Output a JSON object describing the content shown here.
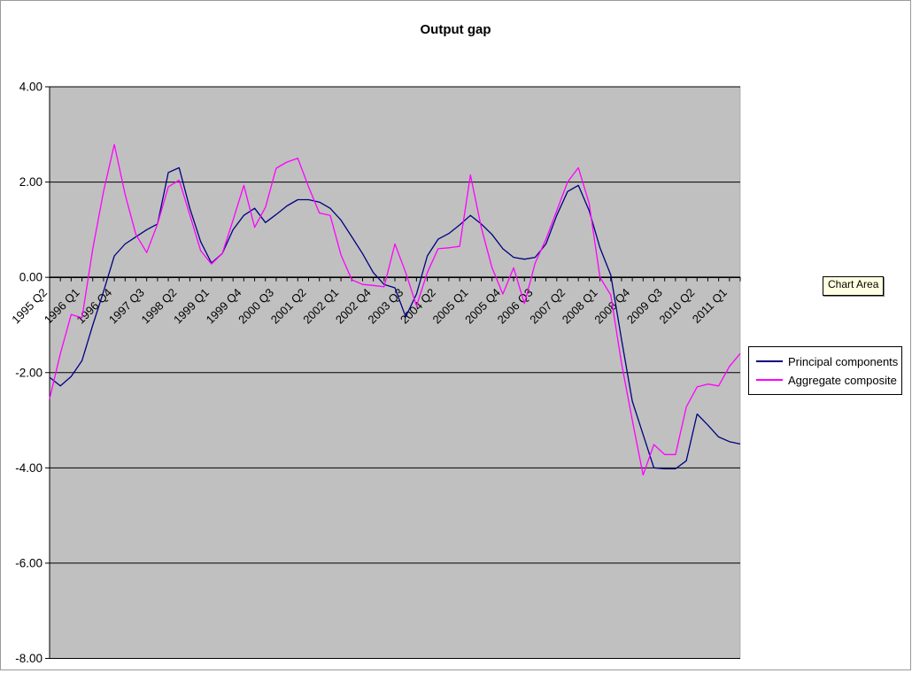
{
  "window": {
    "tooltip": "Chart Area"
  },
  "theme": {
    "chart_bg": "#FFFFFF",
    "plot_bg": "#C0C0C0",
    "grid_color": "#000000",
    "axis_color": "#000000",
    "text_color": "#000000",
    "tooltip_bg": "#FFFFE1",
    "legend_border": "#000000"
  },
  "chart_data": {
    "type": "line",
    "title": "Output gap",
    "xlabel": "",
    "ylabel": "",
    "ylim": [
      -8,
      4
    ],
    "y_tick_step": 2,
    "y_tick_labels": [
      "4.00",
      "2.00",
      "0.00",
      "-2.00",
      "-4.00",
      "-6.00",
      "-8.00"
    ],
    "grid": "horizontal",
    "legend_position": "right",
    "x": [
      "1995 Q2",
      "1995 Q3",
      "1995 Q4",
      "1996 Q1",
      "1996 Q2",
      "1996 Q3",
      "1996 Q4",
      "1997 Q1",
      "1997 Q2",
      "1997 Q3",
      "1997 Q4",
      "1998 Q1",
      "1998 Q2",
      "1998 Q3",
      "1998 Q4",
      "1999 Q1",
      "1999 Q2",
      "1999 Q3",
      "1999 Q4",
      "2000 Q1",
      "2000 Q2",
      "2000 Q3",
      "2000 Q4",
      "2001 Q1",
      "2001 Q2",
      "2001 Q3",
      "2001 Q4",
      "2002 Q1",
      "2002 Q2",
      "2002 Q3",
      "2002 Q4",
      "2003 Q1",
      "2003 Q2",
      "2003 Q3",
      "2003 Q4",
      "2004 Q1",
      "2004 Q2",
      "2004 Q3",
      "2004 Q4",
      "2005 Q1",
      "2005 Q2",
      "2005 Q3",
      "2005 Q4",
      "2006 Q1",
      "2006 Q2",
      "2006 Q3",
      "2006 Q4",
      "2007 Q1",
      "2007 Q2",
      "2007 Q3",
      "2007 Q4",
      "2008 Q1",
      "2008 Q2",
      "2008 Q3",
      "2008 Q4",
      "2009 Q1",
      "2009 Q2",
      "2009 Q3",
      "2009 Q4",
      "2010 Q1",
      "2010 Q2",
      "2010 Q3",
      "2010 Q4",
      "2011 Q1",
      "2011 Q2"
    ],
    "x_tick_labels": [
      "1995 Q2",
      "1996 Q1",
      "1996 Q4",
      "1997 Q3",
      "1998 Q2",
      "1999 Q1",
      "1999 Q4",
      "2000 Q3",
      "2001 Q2",
      "2002 Q1",
      "2002 Q4",
      "2003 Q3",
      "2004 Q2",
      "2005 Q1",
      "2005 Q4",
      "2006 Q3",
      "2007 Q2",
      "2008 Q1",
      "2008 Q4",
      "2009 Q3",
      "2010 Q2",
      "2011 Q1"
    ],
    "x_tick_every": 3,
    "series": [
      {
        "name": "Principal components",
        "color": "#000080",
        "values": [
          -2.1,
          -2.28,
          -2.08,
          -1.75,
          -1.0,
          -0.3,
          0.45,
          0.7,
          0.85,
          1.0,
          1.12,
          2.2,
          2.3,
          1.45,
          0.75,
          0.3,
          0.5,
          1.0,
          1.3,
          1.45,
          1.15,
          1.32,
          1.5,
          1.63,
          1.63,
          1.58,
          1.45,
          1.2,
          0.85,
          0.5,
          0.1,
          -0.15,
          -0.22,
          -0.83,
          -0.35,
          0.45,
          0.8,
          0.92,
          1.1,
          1.3,
          1.12,
          0.9,
          0.6,
          0.42,
          0.38,
          0.42,
          0.7,
          1.3,
          1.8,
          1.93,
          1.4,
          0.62,
          0.05,
          -1.3,
          -2.6,
          -3.3,
          -4.0,
          -4.02,
          -4.02,
          -3.85,
          -2.87,
          -3.1,
          -3.35,
          -3.45,
          -3.5
        ]
      },
      {
        "name": "Aggregate composite",
        "color": "#FF00FF",
        "values": [
          -2.55,
          -1.6,
          -0.78,
          -0.85,
          0.6,
          1.8,
          2.79,
          1.74,
          0.9,
          0.52,
          1.12,
          1.9,
          2.04,
          1.31,
          0.56,
          0.28,
          0.5,
          1.2,
          1.93,
          1.05,
          1.47,
          2.29,
          2.42,
          2.5,
          1.9,
          1.35,
          1.3,
          0.47,
          -0.05,
          -0.15,
          -0.17,
          -0.2,
          0.7,
          0.1,
          -0.6,
          0.1,
          0.6,
          0.62,
          0.65,
          2.15,
          1.05,
          0.2,
          -0.35,
          0.2,
          -0.55,
          0.3,
          0.8,
          1.4,
          2.0,
          2.3,
          1.55,
          0.0,
          -0.37,
          -1.8,
          -3.0,
          -4.15,
          -3.51,
          -3.72,
          -3.72,
          -2.72,
          -2.3,
          -2.24,
          -2.28,
          -1.87,
          -1.6
        ]
      }
    ]
  }
}
